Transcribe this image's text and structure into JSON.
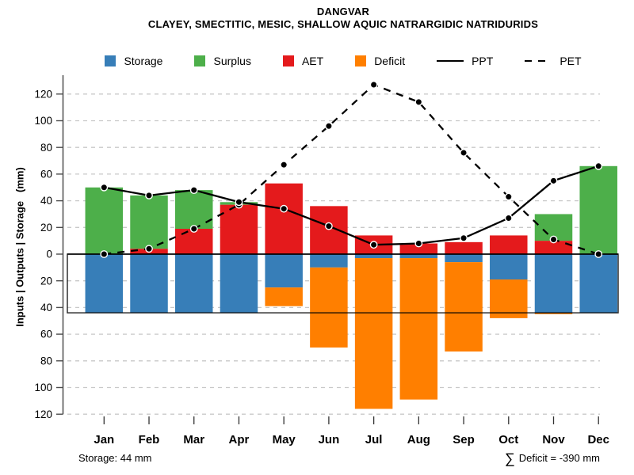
{
  "header": {
    "title": "DANGVAR",
    "subtitle": "CLAYEY, SMECTITIC, MESIC, SHALLOW AQUIC NATRARGIDIC NATRIDURIDS"
  },
  "legend": {
    "items": [
      {
        "label": "Storage",
        "swatch": "square",
        "color": "#377EB8"
      },
      {
        "label": "Surplus",
        "swatch": "square",
        "color": "#4DAF4A"
      },
      {
        "label": "AET",
        "swatch": "square",
        "color": "#E41A1C"
      },
      {
        "label": "Deficit",
        "swatch": "square",
        "color": "#FF7F00"
      },
      {
        "label": "PPT",
        "swatch": "line-solid",
        "color": "#000000"
      },
      {
        "label": "PET",
        "swatch": "line-dashed",
        "color": "#000000"
      }
    ]
  },
  "chart_data": {
    "type": "bar",
    "subtype": "monthly-water-balance (stacked bars above/below zero + 2 line series)",
    "title": "DANGVAR",
    "subtitle": "CLAYEY, SMECTITIC, MESIC, SHALLOW AQUIC NATRARGIDIC NATRIDURIDS",
    "xlabel": "",
    "ylabel": "Inputs | Outputs | Storage   (mm)",
    "categories": [
      "Jan",
      "Feb",
      "Mar",
      "Apr",
      "May",
      "Jun",
      "Jul",
      "Aug",
      "Sep",
      "Oct",
      "Nov",
      "Dec"
    ],
    "series": [
      {
        "name": "Storage",
        "kind": "bar-below-zero",
        "color": "#377EB8",
        "values": [
          44,
          44,
          44,
          44,
          25,
          10,
          3,
          3,
          6,
          19,
          44,
          44
        ]
      },
      {
        "name": "Deficit",
        "kind": "bar-below-zero-stacked-under-storage",
        "color": "#FF7F00",
        "values": [
          0,
          0,
          0,
          0,
          14,
          60,
          113,
          106,
          67,
          29,
          1,
          0
        ]
      },
      {
        "name": "AET",
        "kind": "bar-above-zero",
        "color": "#E41A1C",
        "values": [
          0,
          4,
          19,
          37,
          53,
          36,
          14,
          8,
          9,
          14,
          10,
          0
        ]
      },
      {
        "name": "Surplus",
        "kind": "bar-above-zero-stacked-on-aet",
        "color": "#4DAF4A",
        "values": [
          50,
          40,
          29,
          2,
          0,
          0,
          0,
          0,
          0,
          0,
          20,
          66
        ]
      },
      {
        "name": "PPT",
        "kind": "line",
        "dash": "solid",
        "color": "#000000",
        "marker": "filled-circle",
        "values": [
          50,
          44,
          48,
          39,
          34,
          21,
          7,
          8,
          12,
          27,
          55,
          66
        ]
      },
      {
        "name": "PET",
        "kind": "line",
        "dash": "dashed",
        "color": "#000000",
        "marker": "filled-circle",
        "values": [
          0,
          4,
          19,
          37,
          67,
          96,
          127,
          114,
          76,
          43,
          11,
          0
        ]
      }
    ],
    "y_axis": {
      "min": -120,
      "max": 120,
      "step": 20,
      "tick_labels_absolute_value": true
    },
    "grid": {
      "horizontal_dashed_every": 20,
      "color": "#c9c9c9"
    },
    "zero_line": true,
    "storage_capacity_line_mm": -44,
    "legend_position": "top-center"
  },
  "annotations": {
    "storage": "Storage: 44 mm",
    "deficit_sigma": "∑",
    "deficit": "Deficit = -390 mm"
  }
}
